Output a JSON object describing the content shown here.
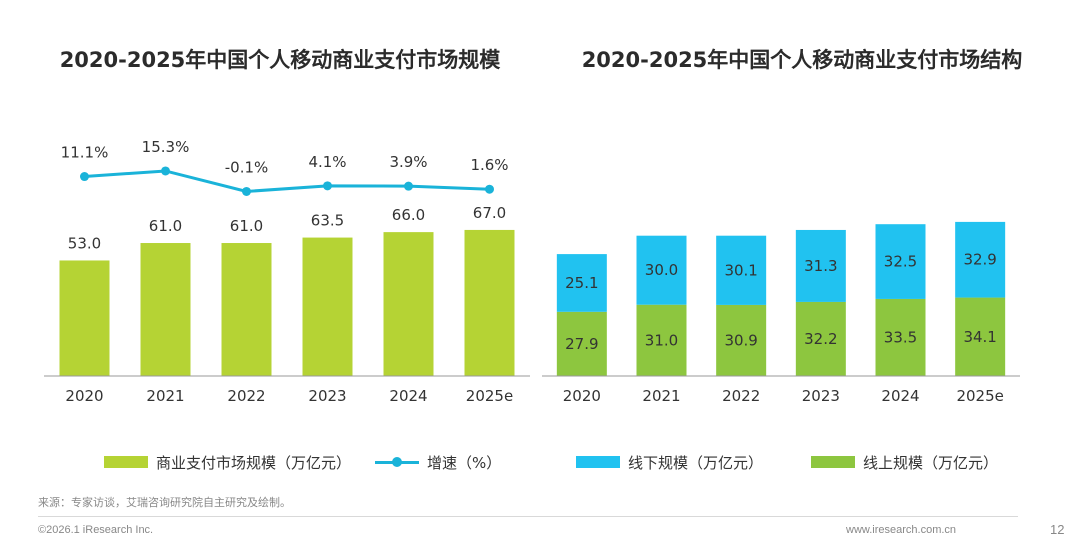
{
  "chart_data": [
    {
      "type": "bar",
      "title": "2020-2025年中国个人移动商业支付市场规模",
      "categories": [
        "2020",
        "2021",
        "2022",
        "2023",
        "2024",
        "2025e"
      ],
      "series": [
        {
          "name": "商业支付市场规模（万亿元）",
          "type": "bar",
          "values": [
            53.0,
            61.0,
            61.0,
            63.5,
            66.0,
            67.0
          ],
          "labels": [
            "53.0",
            "61.0",
            "61.0",
            "63.5",
            "66.0",
            "67.0"
          ],
          "color": "#b5d334"
        },
        {
          "name": "增速（%）",
          "type": "line",
          "values": [
            11.1,
            15.3,
            -0.1,
            4.1,
            3.9,
            1.6
          ],
          "labels": [
            "11.1%",
            "15.3%",
            "-0.1%",
            "4.1%",
            "3.9%",
            "1.6%"
          ],
          "color": "#1ab3d9"
        }
      ],
      "legend_position": "bottom"
    },
    {
      "type": "bar",
      "stacked": true,
      "title": "2020-2025年中国个人移动商业支付市场结构",
      "categories": [
        "2020",
        "2021",
        "2022",
        "2023",
        "2024",
        "2025e"
      ],
      "series": [
        {
          "name": "线下规模（万亿元）",
          "values": [
            25.1,
            30.0,
            30.1,
            31.3,
            32.5,
            32.9
          ],
          "labels": [
            "25.1",
            "30.0",
            "30.1",
            "31.3",
            "32.5",
            "32.9"
          ],
          "color": "#21c2f0"
        },
        {
          "name": "线上规模（万亿元）",
          "values": [
            27.9,
            31.0,
            30.9,
            32.2,
            33.5,
            34.1
          ],
          "labels": [
            "27.9",
            "31.0",
            "30.9",
            "32.2",
            "33.5",
            "34.1"
          ],
          "color": "#8dc63f"
        }
      ],
      "legend_position": "bottom"
    }
  ],
  "footer": {
    "source": "来源：专家访谈，艾瑞咨询研究院自主研究及绘制。",
    "copyright": "©2026.1 iResearch Inc.",
    "website": "www.iresearch.com.cn",
    "page": "12"
  }
}
